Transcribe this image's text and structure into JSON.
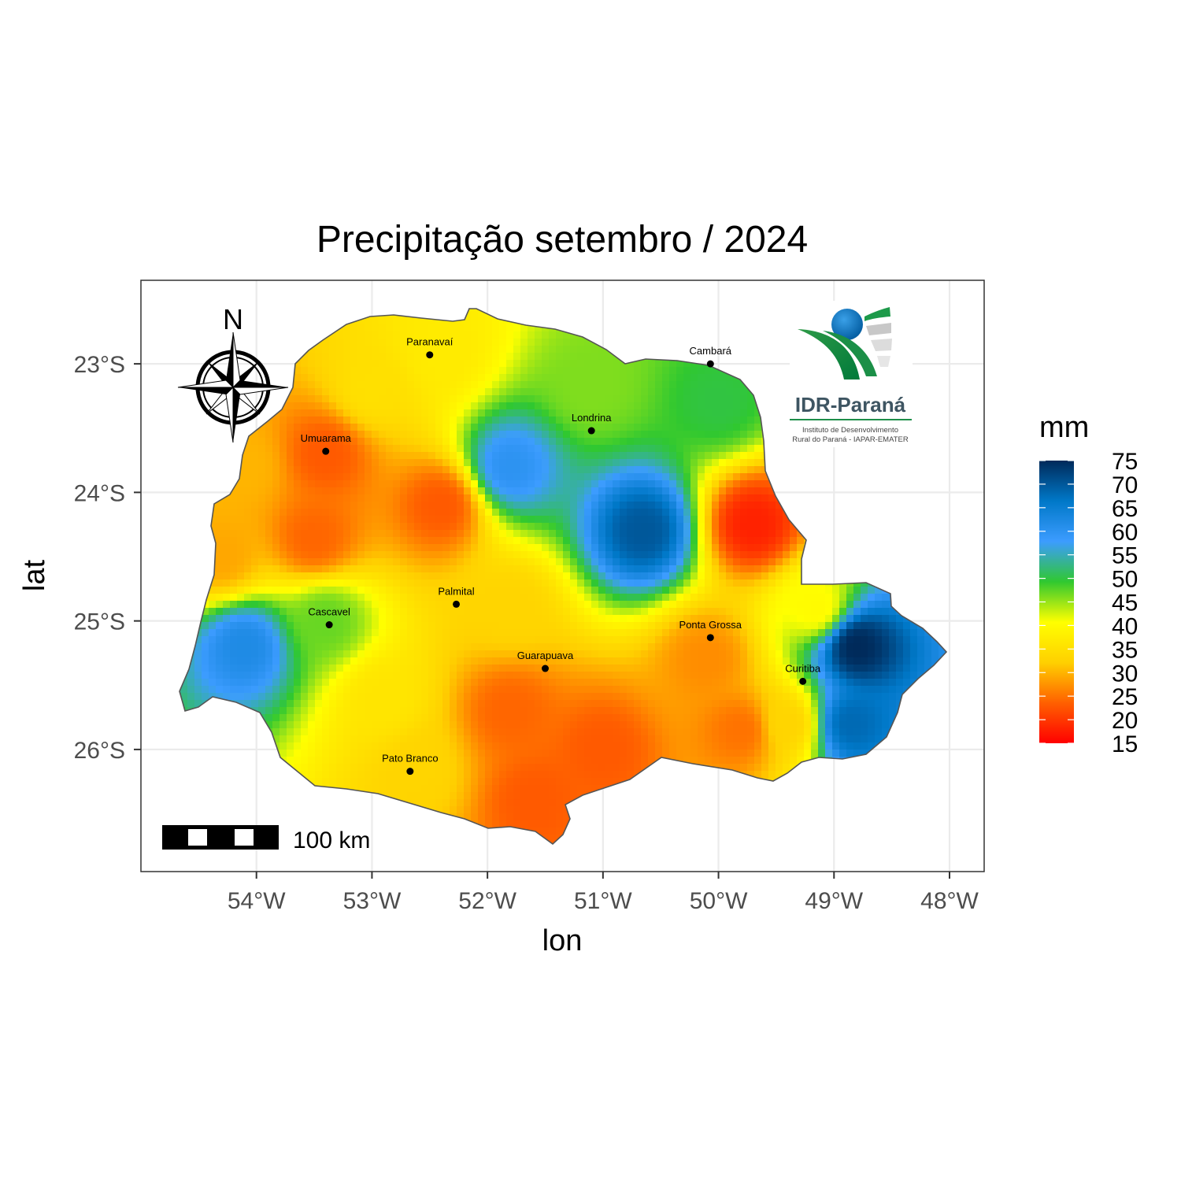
{
  "chart_data": {
    "type": "heatmap",
    "title": "Precipitação setembro / 2024",
    "xlabel": "lon",
    "ylabel": "lat",
    "xlim": [
      -55.0,
      -47.7
    ],
    "ylim": [
      -26.95,
      -22.35
    ],
    "x_ticks": [
      {
        "value": -54,
        "label": "54°W"
      },
      {
        "value": -53,
        "label": "53°W"
      },
      {
        "value": -52,
        "label": "52°W"
      },
      {
        "value": -51,
        "label": "51°W"
      },
      {
        "value": -50,
        "label": "50°W"
      },
      {
        "value": -49,
        "label": "49°W"
      },
      {
        "value": -48,
        "label": "48°W"
      }
    ],
    "y_ticks": [
      {
        "value": -23,
        "label": "23°S"
      },
      {
        "value": -24,
        "label": "24°S"
      },
      {
        "value": -25,
        "label": "25°S"
      },
      {
        "value": -26,
        "label": "26°S"
      }
    ],
    "grid": true,
    "legend": {
      "title": "mm",
      "position": "right",
      "min": 15,
      "max": 75,
      "labels": [
        "75",
        "70",
        "65",
        "60",
        "55",
        "50",
        "45",
        "40",
        "35",
        "30",
        "25",
        "20",
        "15"
      ],
      "colors": [
        "#ff0000",
        "#ff6000",
        "#ffd000",
        "#ffff00",
        "#30c830",
        "#3c9cff",
        "#0078c8",
        "#002a5a"
      ]
    },
    "cities": [
      {
        "name": "Paranavaí",
        "lon": -52.5,
        "lat": -22.93
      },
      {
        "name": "Cambará",
        "lon": -50.07,
        "lat": -23.0
      },
      {
        "name": "Londrina",
        "lon": -51.1,
        "lat": -23.52
      },
      {
        "name": "Umuarama",
        "lon": -53.4,
        "lat": -23.68
      },
      {
        "name": "Palmital",
        "lon": -52.27,
        "lat": -24.87
      },
      {
        "name": "Cascavel",
        "lon": -53.37,
        "lat": -25.03
      },
      {
        "name": "Ponta Grossa",
        "lon": -50.07,
        "lat": -25.13
      },
      {
        "name": "Guarapuava",
        "lon": -51.5,
        "lat": -25.37
      },
      {
        "name": "Curitiba",
        "lon": -49.27,
        "lat": -25.47
      },
      {
        "name": "Pato Branco",
        "lon": -52.67,
        "lat": -26.17
      }
    ],
    "precipitation_centers": [
      {
        "lon": -51.8,
        "lat": -23.8,
        "mm": 60
      },
      {
        "lon": -50.65,
        "lat": -24.3,
        "mm": 70
      },
      {
        "lon": -48.8,
        "lat": -25.2,
        "mm": 75
      },
      {
        "lon": -48.85,
        "lat": -25.8,
        "mm": 68
      },
      {
        "lon": -54.1,
        "lat": -25.2,
        "mm": 62
      },
      {
        "lon": -53.4,
        "lat": -25.0,
        "mm": 47
      },
      {
        "lon": -51.1,
        "lat": -23.2,
        "mm": 46
      },
      {
        "lon": -50.0,
        "lat": -23.3,
        "mm": 50
      },
      {
        "lon": -49.7,
        "lat": -24.25,
        "mm": 18
      },
      {
        "lon": -53.4,
        "lat": -23.7,
        "mm": 23
      },
      {
        "lon": -53.5,
        "lat": -24.35,
        "mm": 24
      },
      {
        "lon": -52.4,
        "lat": -24.1,
        "mm": 23
      },
      {
        "lon": -51.8,
        "lat": -25.7,
        "mm": 24
      },
      {
        "lon": -51.0,
        "lat": -26.0,
        "mm": 23
      },
      {
        "lon": -49.8,
        "lat": -25.85,
        "mm": 25
      },
      {
        "lon": -50.1,
        "lat": -25.3,
        "mm": 27
      },
      {
        "lon": -51.6,
        "lat": -26.4,
        "mm": 23
      },
      {
        "lon": -52.6,
        "lat": -26.15,
        "mm": 33
      },
      {
        "lon": -52.9,
        "lat": -25.6,
        "mm": 36
      },
      {
        "lon": -52.4,
        "lat": -22.9,
        "mm": 37
      },
      {
        "lon": -53.0,
        "lat": -23.2,
        "mm": 35
      },
      {
        "lon": -54.3,
        "lat": -24.5,
        "mm": 29
      },
      {
        "lon": -54.1,
        "lat": -23.8,
        "mm": 30
      },
      {
        "lon": -51.8,
        "lat": -24.9,
        "mm": 33
      },
      {
        "lon": -49.15,
        "lat": -24.9,
        "mm": 40
      },
      {
        "lon": -49.4,
        "lat": -25.8,
        "mm": 33
      }
    ]
  },
  "scale_bar": {
    "label": "100 km"
  },
  "north_arrow": {
    "label": "N"
  },
  "logo": {
    "name": "IDR-Paraná",
    "subtitle_line1": "Instituto de Desenvolvimento",
    "subtitle_line2": "Rural do Paraná - IAPAR-EMATER"
  },
  "icons": {
    "compass": "compass-rose-icon",
    "logo": "idr-parana-logo"
  }
}
